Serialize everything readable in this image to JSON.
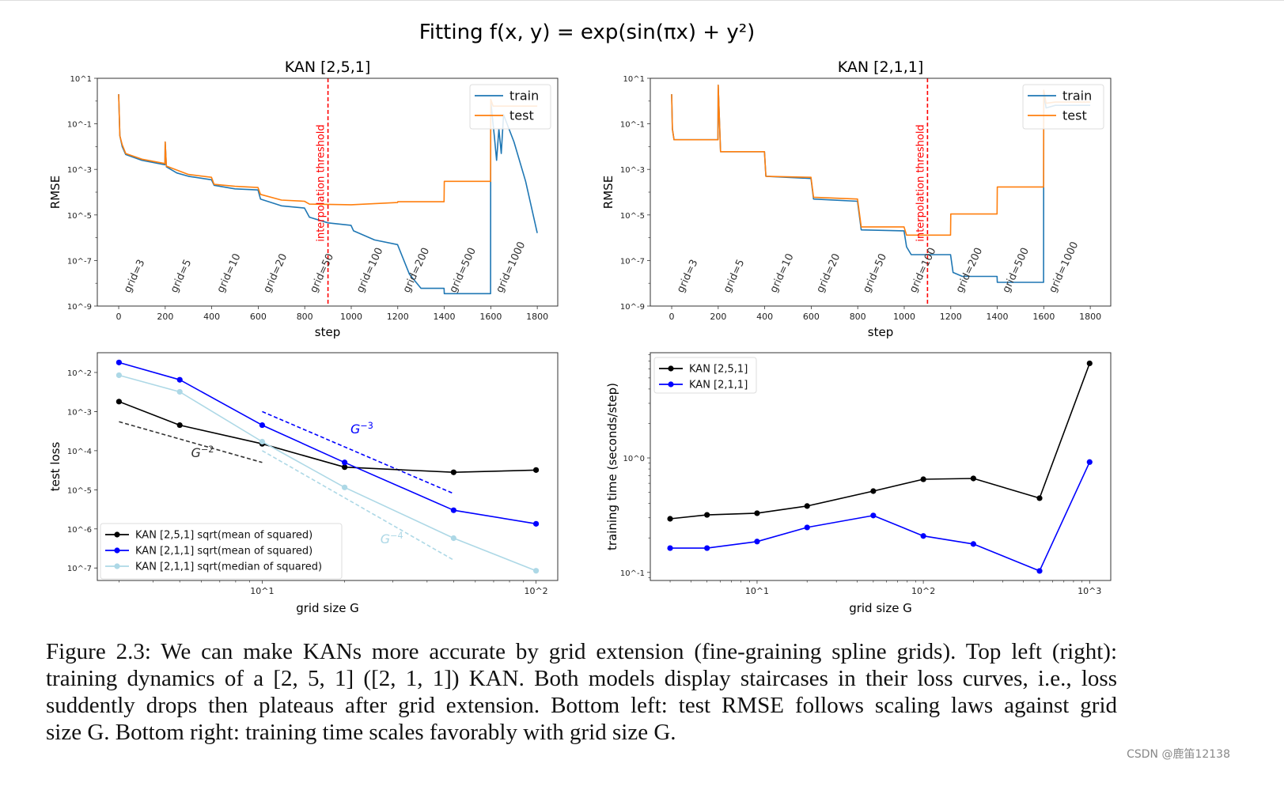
{
  "figure_title": "Fitting f(x, y) = exp(sin(πx) + y²)",
  "caption_lines": [
    "Figure 2.3: We can make KANs more accurate by grid extension (fine-graining spline grids). Top left (right):",
    "training dynamics of a [2, 5, 1] ([2, 1, 1]) KAN. Both models display staircases in their loss curves, i.e., loss",
    "suddently drops then plateaus after grid extension. Bottom left: test RMSE follows scaling laws against grid",
    "size G. Bottom right: training time scales favorably with grid size G."
  ],
  "watermark": "CSDN @鹿笛12138",
  "chart_data": [
    {
      "type": "line",
      "title": "KAN [2,5,1]",
      "xlabel": "step",
      "ylabel": "RMSE",
      "xscale": "linear",
      "yscale": "log",
      "xlim": [
        -92,
        1888
      ],
      "ylim": [
        1e-09,
        10
      ],
      "xticks": [
        0,
        200,
        400,
        600,
        800,
        1000,
        1200,
        1400,
        1600,
        1800
      ],
      "xtick_labels": [
        "0",
        "200",
        "400",
        "600",
        "800",
        "1000",
        "1200",
        "1400",
        "1600",
        "1800"
      ],
      "yticks": [
        10,
        0.1,
        0.001,
        1e-05,
        1e-07,
        1e-09
      ],
      "ytick_labels": [
        "10^1",
        "10^-1",
        "10^-3",
        "10^-5",
        "10^-7",
        "10^-9"
      ],
      "grid": false,
      "legend": "top-right",
      "series": [
        {
          "name": "train",
          "color": "#1f77b4",
          "x": [
            0,
            5,
            15,
            30,
            100,
            199,
            200,
            205,
            250,
            300,
            399,
            410,
            500,
            599,
            610,
            700,
            799,
            820,
            900,
            999,
            1010,
            1100,
            1199,
            1250,
            1300,
            1399,
            1400,
            1599,
            1600,
            1615,
            1625,
            1635,
            1645,
            1655,
            1700,
            1750,
            1800
          ],
          "y": [
            2,
            0.03,
            0.01,
            0.0045,
            0.0025,
            0.0016,
            0.016,
            0.0013,
            0.0007,
            0.0005,
            0.00035,
            0.0002,
            0.00014,
            0.000125,
            5e-05,
            2.5e-05,
            2e-05,
            8e-06,
            4.5e-06,
            3.5e-06,
            2e-06,
            8e-07,
            5e-07,
            2.5e-08,
            6e-09,
            6e-09,
            3.5e-09,
            3.5e-09,
            1,
            0.03,
            0.0025,
            0.06,
            0.005,
            0.25,
            0.016,
            0.0003,
            1.6e-06
          ]
        },
        {
          "name": "test",
          "color": "#ff7f0e",
          "x": [
            0,
            5,
            15,
            30,
            100,
            199,
            200,
            205,
            300,
            399,
            410,
            500,
            599,
            610,
            700,
            799,
            820,
            1000,
            1199,
            1200,
            1399,
            1400,
            1599,
            1600,
            1610,
            1800
          ],
          "y": [
            2,
            0.03,
            0.012,
            0.005,
            0.0028,
            0.0018,
            0.016,
            0.0014,
            0.0006,
            0.00045,
            0.00022,
            0.00018,
            0.00016,
            8e-05,
            4.5e-05,
            4e-05,
            3e-05,
            2.8e-05,
            3.5e-05,
            3.8e-05,
            3.8e-05,
            0.0003,
            0.0003,
            1.2,
            0.6,
            0.6
          ]
        }
      ],
      "vlines": [
        {
          "x": 900,
          "label": "interpolation threshold",
          "color": "#ff0000"
        }
      ],
      "annotations": [
        {
          "text": "grid=3",
          "x": 0
        },
        {
          "text": "grid=5",
          "x": 200
        },
        {
          "text": "grid=10",
          "x": 400
        },
        {
          "text": "grid=20",
          "x": 600
        },
        {
          "text": "grid=50",
          "x": 800
        },
        {
          "text": "grid=100",
          "x": 1000
        },
        {
          "text": "grid=200",
          "x": 1200
        },
        {
          "text": "grid=500",
          "x": 1400
        },
        {
          "text": "grid=1000",
          "x": 1600
        }
      ]
    },
    {
      "type": "line",
      "title": "KAN [2,1,1]",
      "xlabel": "step",
      "ylabel": "RMSE",
      "xscale": "linear",
      "yscale": "log",
      "xlim": [
        -92,
        1888
      ],
      "ylim": [
        1e-09,
        10
      ],
      "xticks": [
        0,
        200,
        400,
        600,
        800,
        1000,
        1200,
        1400,
        1600,
        1800
      ],
      "xtick_labels": [
        "0",
        "200",
        "400",
        "600",
        "800",
        "1000",
        "1200",
        "1400",
        "1600",
        "1800"
      ],
      "yticks": [
        10,
        0.1,
        0.001,
        1e-05,
        1e-07,
        1e-09
      ],
      "ytick_labels": [
        "10^1",
        "10^-1",
        "10^-3",
        "10^-5",
        "10^-7",
        "10^-9"
      ],
      "grid": false,
      "legend": "top-right",
      "series": [
        {
          "name": "train",
          "color": "#1f77b4",
          "x": [
            0,
            3,
            10,
            199,
            200,
            210,
            399,
            405,
            599,
            610,
            799,
            815,
            999,
            1010,
            1030,
            1199,
            1210,
            1250,
            1399,
            1400,
            1599,
            1600,
            1610,
            1650,
            1800
          ],
          "y": [
            2,
            0.06,
            0.02,
            0.02,
            5,
            0.006,
            0.006,
            0.0005,
            0.0004,
            5e-05,
            4e-05,
            2.2e-06,
            2e-06,
            4e-07,
            1.8e-07,
            1.8e-07,
            3e-08,
            2e-08,
            2e-08,
            1.1e-08,
            1.1e-08,
            2,
            0.5,
            0.65,
            0.65
          ]
        },
        {
          "name": "test",
          "color": "#ff7f0e",
          "x": [
            0,
            3,
            10,
            199,
            200,
            210,
            399,
            405,
            599,
            610,
            799,
            815,
            999,
            1010,
            1199,
            1200,
            1399,
            1400,
            1599,
            1600,
            1610,
            1650,
            1800
          ],
          "y": [
            2,
            0.06,
            0.02,
            0.02,
            5,
            0.006,
            0.006,
            0.0005,
            0.00045,
            6e-05,
            5e-05,
            3e-06,
            3e-06,
            1.3e-06,
            1.3e-06,
            1.1e-05,
            1.1e-05,
            0.00017,
            0.00017,
            3,
            0.8,
            0.9,
            0.9
          ]
        }
      ],
      "vlines": [
        {
          "x": 1100,
          "label": "interpolation threshold",
          "color": "#ff0000"
        }
      ],
      "annotations": [
        {
          "text": "grid=3",
          "x": 0
        },
        {
          "text": "grid=5",
          "x": 200
        },
        {
          "text": "grid=10",
          "x": 400
        },
        {
          "text": "grid=20",
          "x": 600
        },
        {
          "text": "grid=50",
          "x": 800
        },
        {
          "text": "grid=100",
          "x": 1000
        },
        {
          "text": "grid=200",
          "x": 1200
        },
        {
          "text": "grid=500",
          "x": 1400
        },
        {
          "text": "grid=1000",
          "x": 1600
        }
      ]
    },
    {
      "type": "line",
      "title": "",
      "xlabel": "grid size G",
      "ylabel": "test loss",
      "xscale": "log",
      "yscale": "log",
      "xlim": [
        2.5,
        120
      ],
      "ylim": [
        4.8e-08,
        0.032
      ],
      "xticks": [
        10,
        100
      ],
      "xtick_labels": [
        "10^1",
        "10^2"
      ],
      "yticks": [
        0.01,
        0.001,
        0.0001,
        1e-05,
        1e-06,
        1e-07
      ],
      "ytick_labels": [
        "10^-2",
        "10^-3",
        "10^-4",
        "10^-5",
        "10^-6",
        "10^-7"
      ],
      "grid": false,
      "legend": "bottom-left",
      "series": [
        {
          "name": "KAN [2,5,1] sqrt(mean of squared)",
          "color": "#000000",
          "marker": true,
          "x": [
            3,
            5,
            10,
            20,
            50,
            100
          ],
          "y": [
            0.0018,
            0.00045,
            0.00015,
            3.8e-05,
            2.8e-05,
            3.2e-05
          ]
        },
        {
          "name": "KAN [2,1,1] sqrt(mean of squared)",
          "color": "#0000ff",
          "marker": true,
          "x": [
            3,
            5,
            10,
            20,
            50,
            100
          ],
          "y": [
            0.018,
            0.0065,
            0.00045,
            5e-05,
            3e-06,
            1.35e-06
          ]
        },
        {
          "name": "KAN [2,1,1] sqrt(median of squared)",
          "color": "#add8e6",
          "marker": true,
          "x": [
            3,
            5,
            10,
            20,
            50,
            100
          ],
          "y": [
            0.0085,
            0.0032,
            0.00017,
            1.15e-05,
            5.8e-07,
            8.5e-08
          ]
        }
      ],
      "reference_lines": [
        {
          "label_base": "G",
          "label_exp": "-2",
          "color": "#333333",
          "x": [
            3,
            10
          ],
          "y": [
            0.00055,
            5e-05
          ],
          "label_x": 5.5,
          "label_y": 6.8e-05
        },
        {
          "label_base": "G",
          "label_exp": "-3",
          "color": "#0000ff",
          "x": [
            10,
            50
          ],
          "y": [
            0.001,
            8e-06
          ],
          "label_x": 21,
          "label_y": 0.00028
        },
        {
          "label_base": "G",
          "label_exp": "-4",
          "color": "#add8e6",
          "x": [
            10,
            50
          ],
          "y": [
            0.0001,
            1.6e-07
          ],
          "label_x": 27,
          "label_y": 4.3e-07
        }
      ]
    },
    {
      "type": "line",
      "title": "",
      "xlabel": "grid size G",
      "ylabel": "training time (seconds/step)",
      "xscale": "log",
      "yscale": "log",
      "xlim": [
        2.28,
        1340
      ],
      "ylim": [
        0.085,
        8.3
      ],
      "xticks": [
        10,
        100,
        1000
      ],
      "xtick_labels": [
        "10^1",
        "10^2",
        "10^3"
      ],
      "yticks": [
        1,
        0.1
      ],
      "ytick_labels": [
        "10^0",
        "10^-1"
      ],
      "grid": false,
      "legend": "top-left",
      "series": [
        {
          "name": "KAN [2,5,1]",
          "color": "#000000",
          "marker": true,
          "x": [
            3,
            5,
            10,
            20,
            50,
            100,
            200,
            500,
            1000
          ],
          "y": [
            0.294,
            0.318,
            0.329,
            0.38,
            0.513,
            0.651,
            0.662,
            0.445,
            6.7
          ]
        },
        {
          "name": "KAN [2,1,1]",
          "color": "#0000ff",
          "marker": true,
          "x": [
            3,
            5,
            10,
            20,
            50,
            100,
            200,
            500,
            1000
          ],
          "y": [
            0.163,
            0.163,
            0.186,
            0.247,
            0.314,
            0.208,
            0.177,
            0.103,
            0.92
          ]
        }
      ]
    }
  ]
}
